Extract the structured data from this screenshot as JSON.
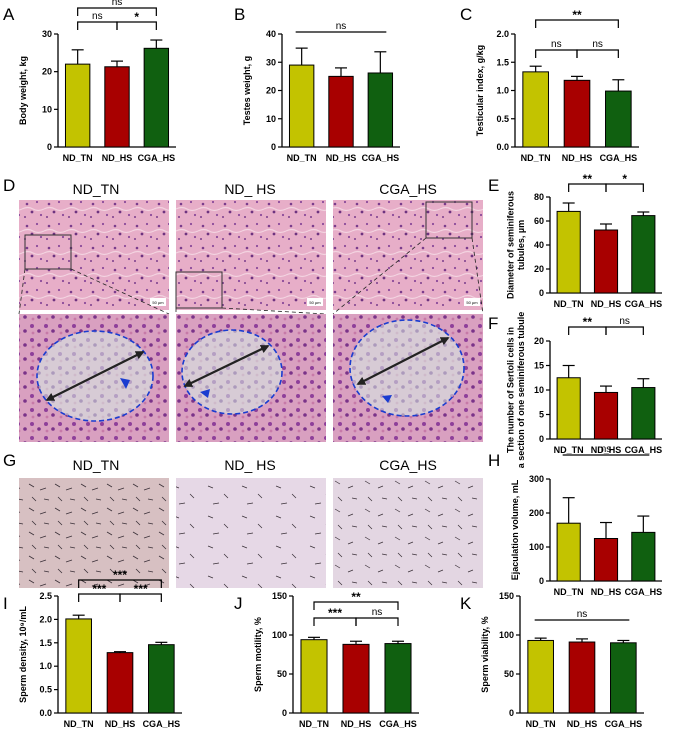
{
  "colors": {
    "ND_TN": "#c3c300",
    "ND_HS": "#a80000",
    "CGA_HS": "#106010"
  },
  "chart_data": [
    {
      "id": "A",
      "letter": "A",
      "type": "bar",
      "categories": [
        "ND_TN",
        "ND_HS",
        "CGA_HS"
      ],
      "values": [
        22,
        21.3,
        26.2
      ],
      "errors": [
        3.8,
        1.5,
        2.2
      ],
      "ylabel": "Body weight, kg",
      "ylim": [
        0,
        30
      ],
      "yticks": [
        0,
        10,
        20,
        30
      ],
      "annotations": [
        {
          "from": 0,
          "to": 2,
          "label": "ns",
          "level": 2
        },
        {
          "from": 0,
          "to": 1,
          "label": "ns",
          "level": 1
        },
        {
          "from": 1,
          "to": 2,
          "label": "*",
          "level": 1
        }
      ]
    },
    {
      "id": "B",
      "letter": "B",
      "type": "bar",
      "categories": [
        "ND_TN",
        "ND_HS",
        "CGA_HS"
      ],
      "values": [
        29,
        25,
        26.2
      ],
      "errors": [
        6,
        3,
        7.5
      ],
      "ylabel": "Testes weight, g",
      "ylim": [
        0,
        40
      ],
      "yticks": [
        0,
        10,
        20,
        30,
        40
      ],
      "annotations": [
        {
          "from": 0,
          "to": 2,
          "label": "ns",
          "level": 1,
          "style": "line"
        }
      ]
    },
    {
      "id": "C",
      "letter": "C",
      "type": "bar",
      "categories": [
        "ND_TN",
        "ND_HS",
        "CGA_HS"
      ],
      "values": [
        1.33,
        1.18,
        0.99
      ],
      "errors": [
        0.1,
        0.07,
        0.2
      ],
      "ylabel": "Testicular index, g/kg",
      "ylim": [
        0,
        2.0
      ],
      "yticks": [
        0.0,
        0.5,
        1.0,
        1.5,
        2.0
      ],
      "annotations": [
        {
          "from": 0,
          "to": 2,
          "label": "**",
          "level": 2
        },
        {
          "from": 0,
          "to": 1,
          "label": "ns",
          "level": 1
        },
        {
          "from": 1,
          "to": 2,
          "label": "ns",
          "level": 1
        }
      ]
    },
    {
      "id": "E",
      "letter": "E",
      "type": "bar",
      "categories": [
        "ND_TN",
        "ND_HS",
        "CGA_HS"
      ],
      "values": [
        68,
        52.5,
        64.5
      ],
      "errors": [
        7,
        5,
        3
      ],
      "ylabel": "Diameter of seminiferous tubules, µm",
      "ylim": [
        0,
        80
      ],
      "yticks": [
        0,
        20,
        40,
        60,
        80
      ],
      "annotations": [
        {
          "from": 0,
          "to": 1,
          "label": "**",
          "level": 1
        },
        {
          "from": 1,
          "to": 2,
          "label": "*",
          "level": 1
        }
      ]
    },
    {
      "id": "F",
      "letter": "F",
      "type": "bar",
      "categories": [
        "ND_TN",
        "ND_HS",
        "CGA_HS"
      ],
      "values": [
        12.5,
        9.5,
        10.5
      ],
      "errors": [
        2.5,
        1.3,
        1.8
      ],
      "ylabel": "The number of Sertoli cells in a section of one seminiferous tubule",
      "ylim": [
        0,
        20
      ],
      "yticks": [
        0,
        5,
        10,
        15,
        20
      ],
      "annotations": [
        {
          "from": 0,
          "to": 1,
          "label": "**",
          "level": 1
        },
        {
          "from": 1,
          "to": 2,
          "label": "ns",
          "level": 1
        }
      ]
    },
    {
      "id": "H",
      "letter": "H",
      "type": "bar",
      "categories": [
        "ND_TN",
        "ND_HS",
        "CGA_HS"
      ],
      "values": [
        170,
        125,
        143
      ],
      "errors": [
        75,
        47,
        48
      ],
      "ylabel": "Ejaculation volume, mL",
      "ylim": [
        0,
        300
      ],
      "yticks": [
        0,
        100,
        200,
        300
      ],
      "annotations": [
        {
          "from": 0,
          "to": 2,
          "label": "ns",
          "level": 1,
          "style": "line"
        }
      ]
    },
    {
      "id": "I",
      "letter": "I",
      "type": "bar",
      "categories": [
        "ND_TN",
        "ND_HS",
        "CGA_HS"
      ],
      "values": [
        2.01,
        1.29,
        1.46
      ],
      "errors": [
        0.08,
        0.02,
        0.05
      ],
      "ylabel": "Sperm density, 10⁹/mL",
      "ylim": [
        0,
        2.5
      ],
      "yticks": [
        0.0,
        0.5,
        1.0,
        1.5,
        2.0,
        2.5
      ],
      "annotations": [
        {
          "from": 0,
          "to": 2,
          "label": "***",
          "level": 2
        },
        {
          "from": 0,
          "to": 1,
          "label": "***",
          "level": 1
        },
        {
          "from": 1,
          "to": 2,
          "label": "***",
          "level": 1
        }
      ]
    },
    {
      "id": "J",
      "letter": "J",
      "type": "bar",
      "categories": [
        "ND_TN",
        "ND_HS",
        "CGA_HS"
      ],
      "values": [
        94,
        88,
        89
      ],
      "errors": [
        3,
        4,
        3
      ],
      "ylabel": "Sperm motility, %",
      "ylim": [
        0,
        150
      ],
      "yticks": [
        0,
        50,
        100,
        150
      ],
      "annotations": [
        {
          "from": 0,
          "to": 2,
          "label": "**",
          "level": 2
        },
        {
          "from": 0,
          "to": 1,
          "label": "***",
          "level": 1
        },
        {
          "from": 1,
          "to": 2,
          "label": "ns",
          "level": 1
        }
      ]
    },
    {
      "id": "K",
      "letter": "K",
      "type": "bar",
      "categories": [
        "ND_TN",
        "ND_HS",
        "CGA_HS"
      ],
      "values": [
        93,
        91,
        90
      ],
      "errors": [
        3,
        4,
        3
      ],
      "ylabel": "Sperm viability, %",
      "ylim": [
        0,
        150
      ],
      "yticks": [
        0,
        50,
        100,
        150
      ],
      "annotations": [
        {
          "from": 0,
          "to": 2,
          "label": "ns",
          "level": 1,
          "style": "line"
        }
      ]
    }
  ],
  "histology": {
    "letter": "D",
    "titles": [
      "ND_TN",
      "ND_ HS",
      "CGA_HS"
    ],
    "scale_label": "50 µm"
  },
  "sperm_images": {
    "letter": "G",
    "titles": [
      "ND_TN",
      "ND_ HS",
      "CGA_HS"
    ]
  }
}
